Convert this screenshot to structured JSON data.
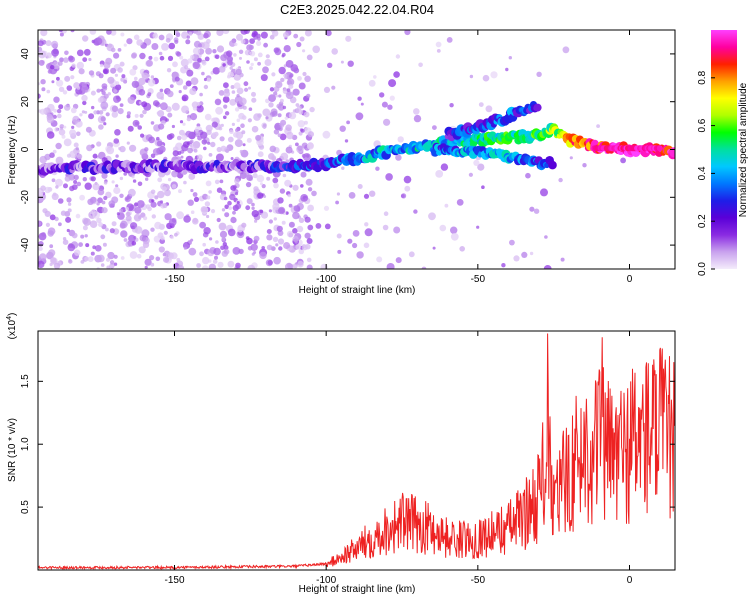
{
  "title": "C2E3.2025.042.22.04.R04",
  "chart_data": [
    {
      "type": "heatmap",
      "xlabel": "Height of straight line (km)",
      "ylabel": "Frequency (Hz)",
      "xlim": [
        -195,
        15
      ],
      "ylim": [
        -50,
        50
      ],
      "x_ticks": [
        -150,
        -100,
        -50,
        0
      ],
      "y_ticks": [
        -40,
        -20,
        0,
        20,
        40
      ],
      "colorbar": {
        "label": "Normalized spectral amplitude",
        "range": [
          0,
          1
        ],
        "ticks": [
          0.0,
          0.2,
          0.4,
          0.6,
          0.8
        ],
        "colors": [
          "#f4ecfb",
          "#c9a2ee",
          "#8a2be2",
          "#5a00d8",
          "#1e1ee8",
          "#0078ff",
          "#00c8ff",
          "#00e0a0",
          "#00ff00",
          "#b0ff00",
          "#ffff00",
          "#ffa000",
          "#ff2000",
          "#ff00a0",
          "#ff40ff"
        ]
      },
      "ridges": [
        {
          "points": [
            [
              -195,
              -8
            ],
            [
              -150,
              -7
            ],
            [
              -120,
              -7
            ],
            [
              -110,
              -7
            ],
            [
              -100,
              -6
            ],
            [
              -90,
              -4
            ],
            [
              -80,
              -1
            ],
            [
              -70,
              1
            ],
            [
              -60,
              3
            ],
            [
              -50,
              4
            ],
            [
              -40,
              5
            ],
            [
              -30,
              6
            ],
            [
              -25,
              8
            ],
            [
              -20,
              4
            ],
            [
              -10,
              1
            ],
            [
              0,
              0
            ],
            [
              10,
              0
            ],
            [
              15,
              -1
            ]
          ],
          "amplitude": [
            0.15,
            0.15,
            0.18,
            0.25,
            0.3,
            0.35,
            0.4,
            0.42,
            0.45,
            0.45,
            0.5,
            0.55,
            0.6,
            0.75,
            0.9,
            0.98,
            0.95,
            0.9
          ]
        },
        {
          "points": [
            [
              -65,
              0
            ],
            [
              -50,
              -1
            ],
            [
              -40,
              -3
            ],
            [
              -30,
              -6
            ],
            [
              -25,
              -5
            ]
          ],
          "amplitude": [
            0.35,
            0.38,
            0.4,
            0.3,
            0.25
          ]
        },
        {
          "points": [
            [
              -60,
              6
            ],
            [
              -50,
              9
            ],
            [
              -40,
              14
            ],
            [
              -30,
              18
            ]
          ],
          "amplitude": [
            0.25,
            0.3,
            0.3,
            0.25
          ]
        }
      ]
    },
    {
      "type": "line",
      "xlabel": "Height of straight line (km)",
      "ylabel": "SNR (10 * v/v)",
      "y_multiplier": "(x10^4)",
      "xlim": [
        -195,
        15
      ],
      "ylim": [
        0,
        1.9
      ],
      "x_ticks": [
        -150,
        -100,
        -50,
        0
      ],
      "y_ticks": [
        0.5,
        1.0,
        1.5
      ],
      "color": "#ee2222",
      "series": [
        {
          "x": [
            -195,
            -150,
            -110,
            -100,
            -95,
            -90,
            -85,
            -80,
            -75,
            -70,
            -65,
            -60,
            -55,
            -50,
            -45,
            -40,
            -35,
            -30,
            -27,
            -25,
            -22,
            -18,
            -15,
            -10,
            -5,
            0,
            5,
            10,
            15
          ],
          "y": [
            0.02,
            0.02,
            0.03,
            0.05,
            0.12,
            0.2,
            0.3,
            0.38,
            0.45,
            0.42,
            0.38,
            0.3,
            0.28,
            0.3,
            0.34,
            0.4,
            0.5,
            0.7,
            1.1,
            0.6,
            0.8,
            1.0,
            1.1,
            1.2,
            1.05,
            1.15,
            1.25,
            1.3,
            1.2
          ]
        }
      ],
      "spikes": [
        {
          "x": -27,
          "y": 1.88
        },
        {
          "x": -9,
          "y": 1.85
        },
        {
          "x": 1,
          "y": 1.6
        },
        {
          "x": 10,
          "y": 1.75
        }
      ]
    }
  ]
}
